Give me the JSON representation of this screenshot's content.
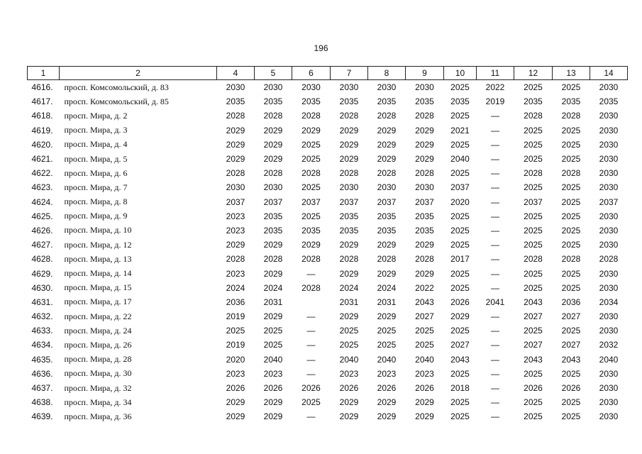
{
  "page_number": "196",
  "table": {
    "header": [
      "1",
      "2",
      "4",
      "5",
      "6",
      "7",
      "8",
      "9",
      "10",
      "11",
      "12",
      "13",
      "14"
    ],
    "rows": [
      [
        "4616.",
        "просп. Комсомольский, д. 83",
        "2030",
        "2030",
        "2030",
        "2030",
        "2030",
        "2030",
        "2025",
        "2022",
        "2025",
        "2025",
        "2030"
      ],
      [
        "4617.",
        "просп. Комсомольский, д. 85",
        "2035",
        "2035",
        "2035",
        "2035",
        "2035",
        "2035",
        "2035",
        "2019",
        "2035",
        "2035",
        "2035"
      ],
      [
        "4618.",
        "просп. Мира, д. 2",
        "2028",
        "2028",
        "2028",
        "2028",
        "2028",
        "2028",
        "2025",
        "—",
        "2028",
        "2028",
        "2030"
      ],
      [
        "4619.",
        "просп. Мира, д. 3",
        "2029",
        "2029",
        "2029",
        "2029",
        "2029",
        "2029",
        "2021",
        "—",
        "2025",
        "2025",
        "2030"
      ],
      [
        "4620.",
        "просп. Мира, д. 4",
        "2029",
        "2029",
        "2025",
        "2029",
        "2029",
        "2029",
        "2025",
        "—",
        "2025",
        "2025",
        "2030"
      ],
      [
        "4621.",
        "просп. Мира, д. 5",
        "2029",
        "2029",
        "2025",
        "2029",
        "2029",
        "2029",
        "2040",
        "—",
        "2025",
        "2025",
        "2030"
      ],
      [
        "4622.",
        "просп. Мира, д. 6",
        "2028",
        "2028",
        "2028",
        "2028",
        "2028",
        "2028",
        "2025",
        "—",
        "2028",
        "2028",
        "2030"
      ],
      [
        "4623.",
        "просп. Мира, д. 7",
        "2030",
        "2030",
        "2025",
        "2030",
        "2030",
        "2030",
        "2037",
        "—",
        "2025",
        "2025",
        "2030"
      ],
      [
        "4624.",
        "просп. Мира, д. 8",
        "2037",
        "2037",
        "2037",
        "2037",
        "2037",
        "2037",
        "2020",
        "—",
        "2037",
        "2025",
        "2037"
      ],
      [
        "4625.",
        "просп. Мира, д. 9",
        "2023",
        "2035",
        "2025",
        "2035",
        "2035",
        "2035",
        "2025",
        "—",
        "2025",
        "2025",
        "2030"
      ],
      [
        "4626.",
        "просп. Мира, д. 10",
        "2023",
        "2035",
        "2035",
        "2035",
        "2035",
        "2035",
        "2025",
        "—",
        "2025",
        "2025",
        "2030"
      ],
      [
        "4627.",
        "просп. Мира, д. 12",
        "2029",
        "2029",
        "2029",
        "2029",
        "2029",
        "2029",
        "2025",
        "—",
        "2025",
        "2025",
        "2030"
      ],
      [
        "4628.",
        "просп. Мира, д. 13",
        "2028",
        "2028",
        "2028",
        "2028",
        "2028",
        "2028",
        "2017",
        "—",
        "2028",
        "2028",
        "2028"
      ],
      [
        "4629.",
        "просп. Мира, д. 14",
        "2023",
        "2029",
        "—",
        "2029",
        "2029",
        "2029",
        "2025",
        "—",
        "2025",
        "2025",
        "2030"
      ],
      [
        "4630.",
        "просп. Мира, д. 15",
        "2024",
        "2024",
        "2028",
        "2024",
        "2024",
        "2022",
        "2025",
        "—",
        "2025",
        "2025",
        "2030"
      ],
      [
        "4631.",
        "просп. Мира, д. 17",
        "2036",
        "2031",
        null,
        "2031",
        "2031",
        "2043",
        "2026",
        "2041",
        "2043",
        "2036",
        "2034"
      ],
      [
        "4632.",
        "просп. Мира, д. 22",
        "2019",
        "2029",
        "—",
        "2029",
        "2029",
        "2027",
        "2029",
        "—",
        "2027",
        "2027",
        "2030"
      ],
      [
        "4633.",
        "просп. Мира, д. 24",
        "2025",
        "2025",
        "—",
        "2025",
        "2025",
        "2025",
        "2025",
        "—",
        "2025",
        "2025",
        "2030"
      ],
      [
        "4634.",
        "просп. Мира, д. 26",
        "2019",
        "2025",
        "—",
        "2025",
        "2025",
        "2025",
        "2027",
        "—",
        "2027",
        "2027",
        "2032"
      ],
      [
        "4635.",
        "просп. Мира, д. 28",
        "2020",
        "2040",
        "—",
        "2040",
        "2040",
        "2040",
        "2043",
        "—",
        "2043",
        "2043",
        "2040"
      ],
      [
        "4636.",
        "просп. Мира, д. 30",
        "2023",
        "2023",
        "—",
        "2023",
        "2023",
        "2023",
        "2025",
        "—",
        "2025",
        "2025",
        "2030"
      ],
      [
        "4637.",
        "просп. Мира, д. 32",
        "2026",
        "2026",
        "2026",
        "2026",
        "2026",
        "2026",
        "2018",
        "—",
        "2026",
        "2026",
        "2030"
      ],
      [
        "4638.",
        "просп. Мира, д. 34",
        "2029",
        "2029",
        "2025",
        "2029",
        "2029",
        "2029",
        "2025",
        "—",
        "2025",
        "2025",
        "2030"
      ],
      [
        "4639.",
        "просп. Мира, д. 36",
        "2029",
        "2029",
        "—",
        "2029",
        "2029",
        "2029",
        "2025",
        "—",
        "2025",
        "2025",
        "2030"
      ]
    ]
  }
}
